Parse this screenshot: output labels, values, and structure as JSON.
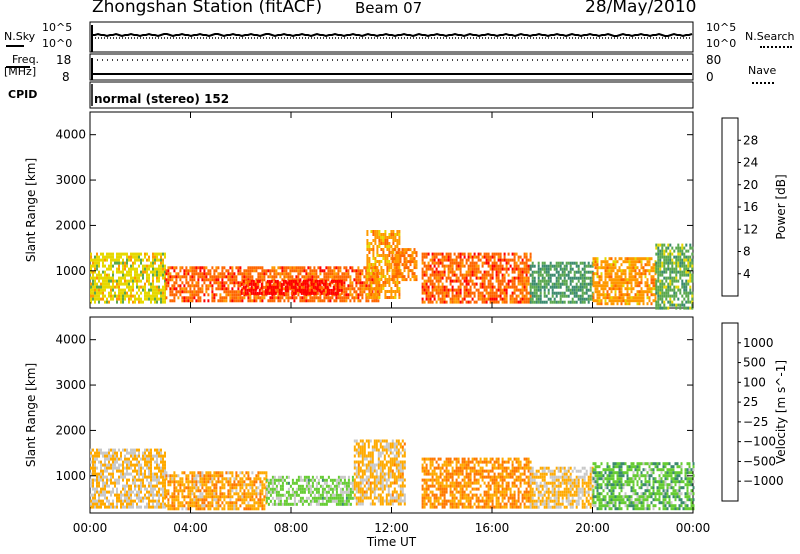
{
  "header": {
    "title": "Zhongshan Station (fitACF)",
    "beam": "Beam 07",
    "date": "28/May/2010"
  },
  "top_panels": {
    "nsky_label": "N.Sky",
    "nsky_ticks": [
      "10^5",
      "10^0"
    ],
    "nsearch_label": "N.Search",
    "nsearch_ticks": [
      "10^5",
      "10^0"
    ],
    "freq_label": "Freq.",
    "freq_unit": "[MHz]",
    "freq_ticks": [
      "18",
      "8"
    ],
    "nave_label": "Nave",
    "nave_ticks": [
      "80",
      "0"
    ],
    "cpid_label": "CPID",
    "cpid_text": "normal (stereo) 152"
  },
  "colors": {
    "power": [
      "#0000ff",
      "#2e4da6",
      "#3a8a6e",
      "#5aa84e",
      "#e6d800",
      "#ff9900",
      "#ff6600",
      "#ff0000"
    ],
    "velocity": [
      "#ff0000",
      "#ff3300",
      "#ff7700",
      "#ffaa00",
      "#c8c8c8",
      "#66cc33",
      "#3a8a6e",
      "#2e4da6",
      "#1a3fbf"
    ]
  },
  "chart_data": [
    {
      "type": "heatmap",
      "title": "Power",
      "ylabel": "Slant Range [km]",
      "xlabel": "",
      "colorbar_label": "Power [dB]",
      "colorbar_ticks": [
        "28",
        "24",
        "20",
        "16",
        "12",
        "8",
        "4"
      ],
      "clim": [
        0,
        32
      ],
      "ylim": [
        180,
        4500
      ],
      "y_ticks": [
        "4000",
        "3000",
        "2000",
        "1000"
      ],
      "x_ticks": [
        "00:00",
        "04:00",
        "08:00",
        "12:00",
        "16:00",
        "20:00",
        "00:00"
      ],
      "xlim_hours": [
        0,
        24
      ],
      "bands": [
        {
          "start_h": 0.0,
          "end_h": 3.0,
          "min_km": 300,
          "max_km": 1400,
          "level": 18
        },
        {
          "start_h": 3.0,
          "end_h": 11.5,
          "min_km": 350,
          "max_km": 1100,
          "level": 26
        },
        {
          "start_h": 6.0,
          "end_h": 10.0,
          "min_km": 500,
          "max_km": 800,
          "level": 30
        },
        {
          "start_h": 11.0,
          "end_h": 12.3,
          "min_km": 400,
          "max_km": 1900,
          "level": 22
        },
        {
          "start_h": 12.0,
          "end_h": 13.0,
          "min_km": 800,
          "max_km": 1500,
          "level": 24
        },
        {
          "start_h": 13.2,
          "end_h": 17.5,
          "min_km": 300,
          "max_km": 1400,
          "level": 26
        },
        {
          "start_h": 17.5,
          "end_h": 20.0,
          "min_km": 300,
          "max_km": 1200,
          "level": 12
        },
        {
          "start_h": 20.0,
          "end_h": 22.5,
          "min_km": 300,
          "max_km": 1300,
          "level": 22
        },
        {
          "start_h": 22.5,
          "end_h": 24.0,
          "min_km": 200,
          "max_km": 1600,
          "level": 14
        }
      ]
    },
    {
      "type": "heatmap",
      "title": "Velocity",
      "ylabel": "Slant Range [km]",
      "xlabel": "Time UT",
      "colorbar_label": "Velocity [m s^-1]",
      "colorbar_ticks": [
        "1000",
        "500",
        "100",
        "25",
        "−25",
        "−100",
        "−500",
        "−1000"
      ],
      "clim": [
        -1200,
        1200
      ],
      "ylim": [
        180,
        4500
      ],
      "y_ticks": [
        "4000",
        "3000",
        "2000",
        "1000"
      ],
      "x_ticks": [
        "00:00",
        "04:00",
        "08:00",
        "12:00",
        "16:00",
        "20:00",
        "00:00"
      ],
      "xlim_hours": [
        0,
        24
      ],
      "bands": [
        {
          "start_h": 0.0,
          "end_h": 3.0,
          "min_km": 300,
          "max_km": 1600,
          "level": -150
        },
        {
          "start_h": 3.0,
          "end_h": 7.0,
          "min_km": 300,
          "max_km": 1100,
          "level": -300
        },
        {
          "start_h": 7.0,
          "end_h": 10.5,
          "min_km": 350,
          "max_km": 1000,
          "level": 200
        },
        {
          "start_h": 10.5,
          "end_h": 12.5,
          "min_km": 400,
          "max_km": 1800,
          "level": -200
        },
        {
          "start_h": 13.2,
          "end_h": 17.5,
          "min_km": 300,
          "max_km": 1400,
          "level": -400
        },
        {
          "start_h": 17.5,
          "end_h": 20.0,
          "min_km": 300,
          "max_km": 1200,
          "level": -150
        },
        {
          "start_h": 20.0,
          "end_h": 24.0,
          "min_km": 250,
          "max_km": 1300,
          "level": 300
        }
      ]
    }
  ]
}
